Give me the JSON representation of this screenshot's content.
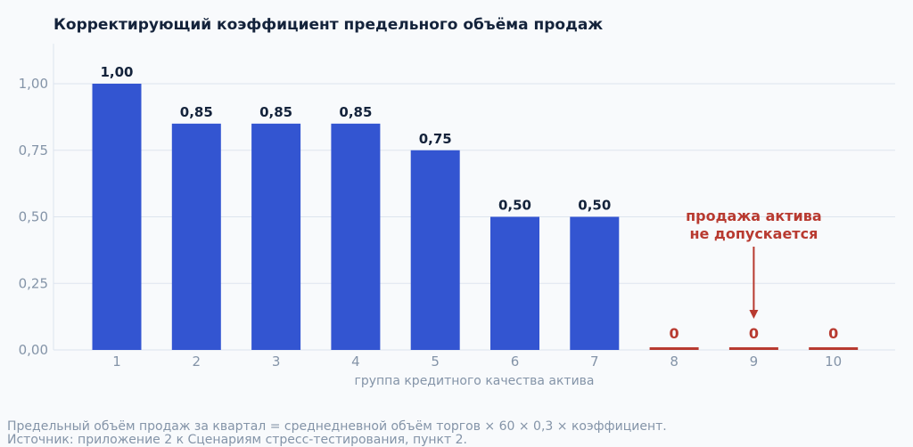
{
  "chart_data": {
    "type": "bar",
    "title": "Корректирующий коэффициент предельного объёма продаж",
    "xlabel": "группа кредитного качества актива",
    "ylabel": "",
    "ylim": [
      0,
      1.15
    ],
    "yticks": [
      0,
      0.25,
      0.5,
      0.75,
      1.0
    ],
    "ytick_labels": [
      "0,00",
      "0,25",
      "0,50",
      "0,75",
      "1,00"
    ],
    "categories": [
      "1",
      "2",
      "3",
      "4",
      "5",
      "6",
      "7",
      "8",
      "9",
      "10"
    ],
    "values": [
      1.0,
      0.85,
      0.85,
      0.85,
      0.75,
      0.5,
      0.5,
      0,
      0,
      0
    ],
    "value_labels": [
      "1,00",
      "0,85",
      "0,85",
      "0,85",
      "0,75",
      "0,50",
      "0,50",
      "0",
      "0",
      "0"
    ],
    "grid": true,
    "colors": {
      "bar": "#3355d1",
      "zero": "#b83a30",
      "grid": "#dde4ee"
    },
    "annotation": {
      "target_category": "9",
      "lines": [
        "продажа актива",
        "не допускается"
      ]
    }
  },
  "footnotes": [
    "Предельный объём продаж за квартал = среднедневной объём торгов × 60 × 0,3 × коэффициент.",
    "Источник: приложение 2 к Сценариям стресс-тестирования, пункт 2."
  ]
}
